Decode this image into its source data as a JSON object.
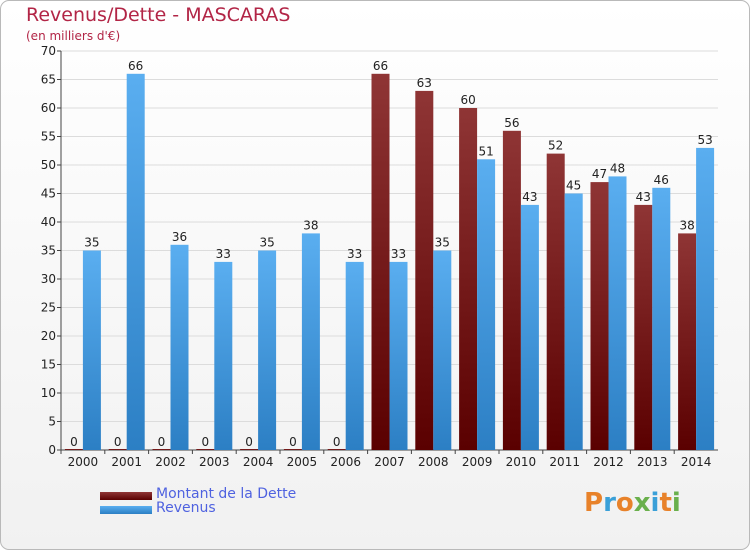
{
  "title": "Revenus/Dette - MASCARAS",
  "subtitle": "(en milliers d'€)",
  "legend": [
    {
      "label": "Montant de la Dette",
      "color": "#6b0f0f"
    },
    {
      "label": "Revenus",
      "color": "#4aa3e6"
    }
  ],
  "logo_text": "Proxiti",
  "colors": {
    "title": "#b22546",
    "legend_text": "#4f62e0",
    "debt_bar_top": "#8f3535",
    "debt_bar_bottom": "#5a0000",
    "revenue_bar_top": "#5aaef0",
    "revenue_bar_bottom": "#2c7fc4",
    "grid": "#dcdcdc",
    "axis_text": "#222222"
  },
  "chart_data": {
    "type": "bar",
    "categories": [
      "2000",
      "2001",
      "2002",
      "2003",
      "2004",
      "2005",
      "2006",
      "2007",
      "2008",
      "2009",
      "2010",
      "2011",
      "2012",
      "2013",
      "2014"
    ],
    "series": [
      {
        "name": "Montant de la Dette",
        "values": [
          0,
          0,
          0,
          0,
          0,
          0,
          0,
          66,
          63,
          60,
          56,
          52,
          47,
          43,
          38
        ]
      },
      {
        "name": "Revenus",
        "values": [
          35,
          66,
          36,
          33,
          35,
          38,
          33,
          33,
          35,
          51,
          43,
          45,
          48,
          46,
          53
        ]
      }
    ],
    "ylim": [
      0,
      70
    ],
    "yticks": [
      0,
      5,
      10,
      15,
      20,
      25,
      30,
      35,
      40,
      45,
      50,
      55,
      60,
      65,
      70
    ],
    "grid": true,
    "legend_position": "bottom-left"
  }
}
